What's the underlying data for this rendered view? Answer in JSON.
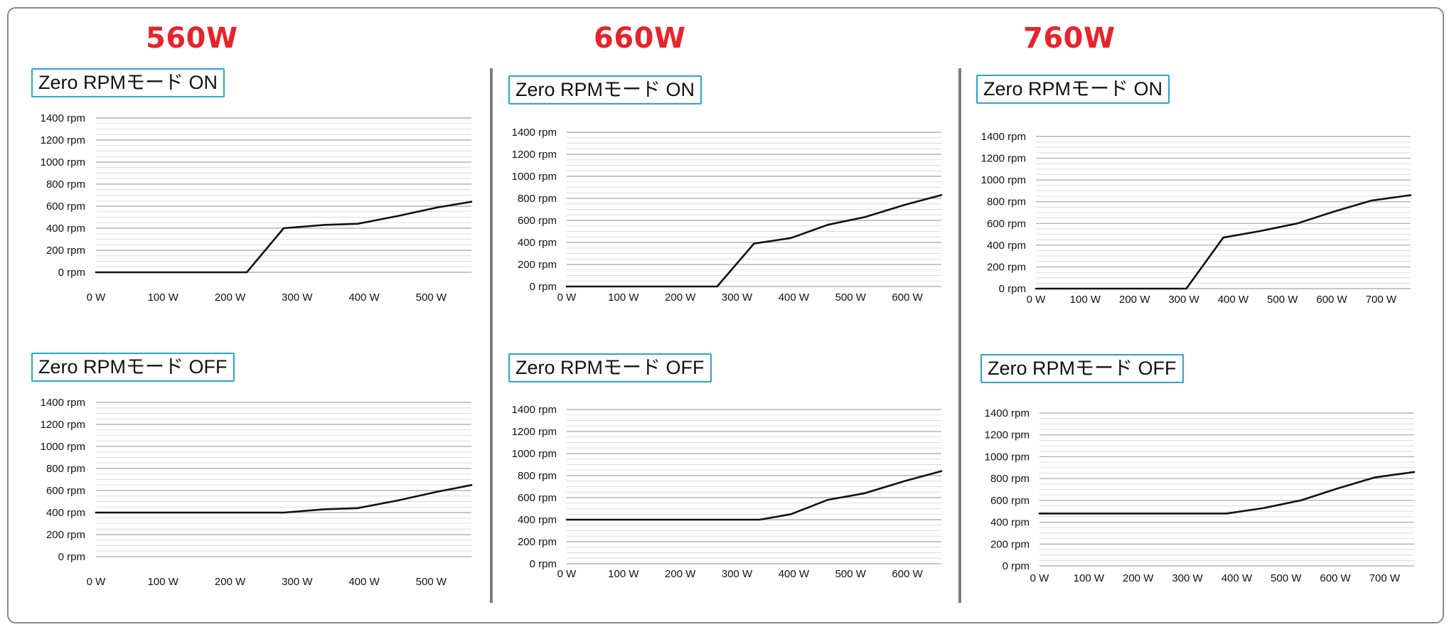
{
  "columns": [
    {
      "title": "560W",
      "on_label": "Zero RPMモード ON",
      "off_label": "Zero RPMモード OFF"
    },
    {
      "title": "660W",
      "on_label": "Zero RPMモード ON",
      "off_label": "Zero RPMモード OFF"
    },
    {
      "title": "760W",
      "on_label": "Zero RPMモード ON",
      "off_label": "Zero RPMモード OFF"
    }
  ],
  "colors": {
    "title": "#e8232a",
    "label_border": "#2aa6c9",
    "line": "#111111",
    "grid": "#c8c8c8",
    "divider": "#7d7d7d"
  },
  "chart_data": [
    {
      "type": "line",
      "title": "Zero RPMモード ON",
      "column": "560W",
      "xlim": [
        0,
        560
      ],
      "ylim": [
        0,
        1400
      ],
      "x_ticks": [
        "0 W",
        "100 W",
        "200 W",
        "300 W",
        "400 W",
        "500 W"
      ],
      "y_ticks": [
        "0 rpm",
        "200 rpm",
        "400 rpm",
        "600 rpm",
        "800 rpm",
        "1000 rpm",
        "1200 rpm",
        "1400 rpm"
      ],
      "series": [
        {
          "x": [
            0,
            225,
            280,
            340,
            390,
            450,
            510,
            560
          ],
          "y": [
            0,
            0,
            400,
            430,
            440,
            510,
            590,
            640
          ]
        }
      ]
    },
    {
      "type": "line",
      "title": "Zero RPMモード OFF",
      "column": "560W",
      "xlim": [
        0,
        560
      ],
      "ylim": [
        0,
        1400
      ],
      "x_ticks": [
        "0 W",
        "100 W",
        "200 W",
        "300 W",
        "400 W",
        "500 W"
      ],
      "y_ticks": [
        "0 rpm",
        "200 rpm",
        "400 rpm",
        "600 rpm",
        "800 rpm",
        "1000 rpm",
        "1200 rpm",
        "1400 rpm"
      ],
      "series": [
        {
          "x": [
            0,
            280,
            340,
            390,
            450,
            510,
            560
          ],
          "y": [
            400,
            400,
            430,
            440,
            510,
            590,
            650
          ]
        }
      ]
    },
    {
      "type": "line",
      "title": "Zero RPMモード ON",
      "column": "660W",
      "xlim": [
        0,
        660
      ],
      "ylim": [
        0,
        1400
      ],
      "x_ticks": [
        "0 W",
        "100 W",
        "200 W",
        "300 W",
        "400 W",
        "500 W",
        "600 W"
      ],
      "y_ticks": [
        "0 rpm",
        "200 rpm",
        "400 rpm",
        "600 rpm",
        "800 rpm",
        "1000 rpm",
        "1200 rpm",
        "1400 rpm"
      ],
      "series": [
        {
          "x": [
            0,
            265,
            330,
            395,
            460,
            525,
            595,
            660
          ],
          "y": [
            0,
            0,
            390,
            440,
            560,
            630,
            740,
            830
          ]
        }
      ]
    },
    {
      "type": "line",
      "title": "Zero RPMモード OFF",
      "column": "660W",
      "xlim": [
        0,
        660
      ],
      "ylim": [
        0,
        1400
      ],
      "x_ticks": [
        "0 W",
        "100 W",
        "200 W",
        "300 W",
        "400 W",
        "500 W",
        "600 W"
      ],
      "y_ticks": [
        "0 rpm",
        "200 rpm",
        "400 rpm",
        "600 rpm",
        "800 rpm",
        "1000 rpm",
        "1200 rpm",
        "1400 rpm"
      ],
      "series": [
        {
          "x": [
            0,
            300,
            340,
            395,
            460,
            525,
            595,
            660
          ],
          "y": [
            400,
            400,
            400,
            450,
            580,
            640,
            750,
            840
          ]
        }
      ]
    },
    {
      "type": "line",
      "title": "Zero RPMモード ON",
      "column": "760W",
      "xlim": [
        0,
        760
      ],
      "ylim": [
        0,
        1400
      ],
      "x_ticks": [
        "0 W",
        "100 W",
        "200 W",
        "300 W",
        "400 W",
        "500 W",
        "600 W",
        "700 W"
      ],
      "y_ticks": [
        "0 rpm",
        "200 rpm",
        "400 rpm",
        "600 rpm",
        "800 rpm",
        "1000 rpm",
        "1200 rpm",
        "1400 rpm"
      ],
      "series": [
        {
          "x": [
            0,
            305,
            380,
            455,
            530,
            605,
            680,
            760
          ],
          "y": [
            0,
            0,
            470,
            530,
            600,
            710,
            810,
            860
          ]
        }
      ]
    },
    {
      "type": "line",
      "title": "Zero RPMモード OFF",
      "column": "760W",
      "xlim": [
        0,
        760
      ],
      "ylim": [
        0,
        1400
      ],
      "x_ticks": [
        "0 W",
        "100 W",
        "200 W",
        "300 W",
        "400 W",
        "500 W",
        "600 W",
        "700 W"
      ],
      "y_ticks": [
        "0 rpm",
        "200 rpm",
        "400 rpm",
        "600 rpm",
        "800 rpm",
        "1000 rpm",
        "1200 rpm",
        "1400 rpm"
      ],
      "series": [
        {
          "x": [
            0,
            300,
            380,
            455,
            530,
            605,
            680,
            760
          ],
          "y": [
            480,
            480,
            480,
            530,
            600,
            710,
            810,
            860
          ]
        }
      ]
    }
  ]
}
